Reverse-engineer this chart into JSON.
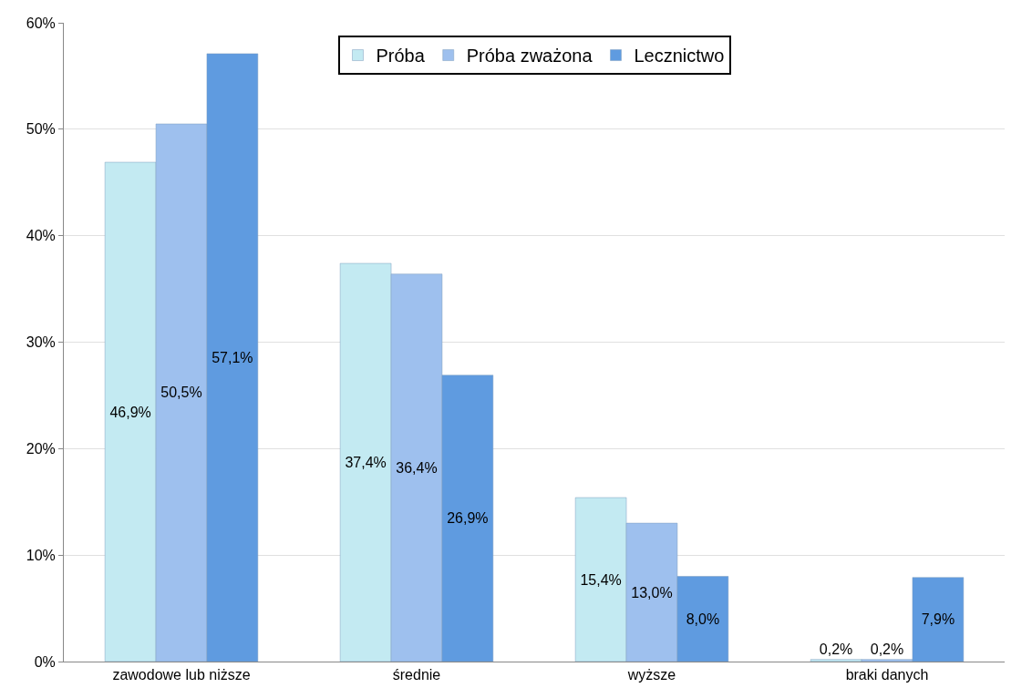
{
  "chart_data": {
    "type": "bar",
    "categories": [
      "zawodowe lub niższe",
      "średnie",
      "wyższe",
      "braki danych"
    ],
    "series": [
      {
        "name": "Próba",
        "color": "#c3eaf2",
        "values": [
          46.9,
          37.4,
          15.4,
          0.2
        ],
        "value_labels": [
          "46,9%",
          "37,4%",
          "15,4%",
          "0,2%"
        ]
      },
      {
        "name": "Próba zważona",
        "color": "#9ec0ee",
        "values": [
          50.5,
          36.4,
          13.0,
          0.2
        ],
        "value_labels": [
          "50,5%",
          "36,4%",
          "13,0%",
          "0,2%"
        ]
      },
      {
        "name": "Lecznictwo",
        "color": "#5f9be0",
        "values": [
          57.1,
          26.9,
          8.0,
          7.9
        ],
        "value_labels": [
          "57,1%",
          "26,9%",
          "8,0%",
          "7,9%"
        ]
      }
    ],
    "ylim": [
      0,
      60
    ],
    "yticks": [
      {
        "value": 0,
        "label": "0%"
      },
      {
        "value": 10,
        "label": "10%"
      },
      {
        "value": 20,
        "label": "20%"
      },
      {
        "value": 30,
        "label": "30%"
      },
      {
        "value": 40,
        "label": "40%"
      },
      {
        "value": 50,
        "label": "50%"
      },
      {
        "value": 60,
        "label": "60%"
      }
    ],
    "grid": "y",
    "legend": "top"
  }
}
